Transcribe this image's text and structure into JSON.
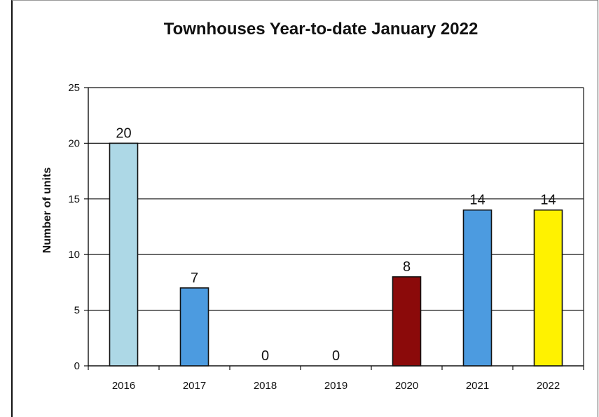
{
  "chart_data": {
    "type": "bar",
    "title": "Townhouses Year-to-date January 2022",
    "xlabel": "",
    "ylabel": "Number of units",
    "categories": [
      "2016",
      "2017",
      "2018",
      "2019",
      "2020",
      "2021",
      "2022"
    ],
    "values": [
      20,
      7,
      0,
      0,
      8,
      14,
      14
    ],
    "data_labels": [
      "20",
      "7",
      "0",
      "0",
      "8",
      "14",
      "14"
    ],
    "bar_colors": [
      "#ADD8E6",
      "#4C9BE0",
      "#4C9BE0",
      "#4C9BE0",
      "#8B0A0A",
      "#4C9BE0",
      "#FFF200"
    ],
    "ylim": [
      0,
      25
    ],
    "yticks": [
      0,
      5,
      10,
      15,
      20,
      25
    ],
    "grid": true,
    "legend": "none"
  }
}
